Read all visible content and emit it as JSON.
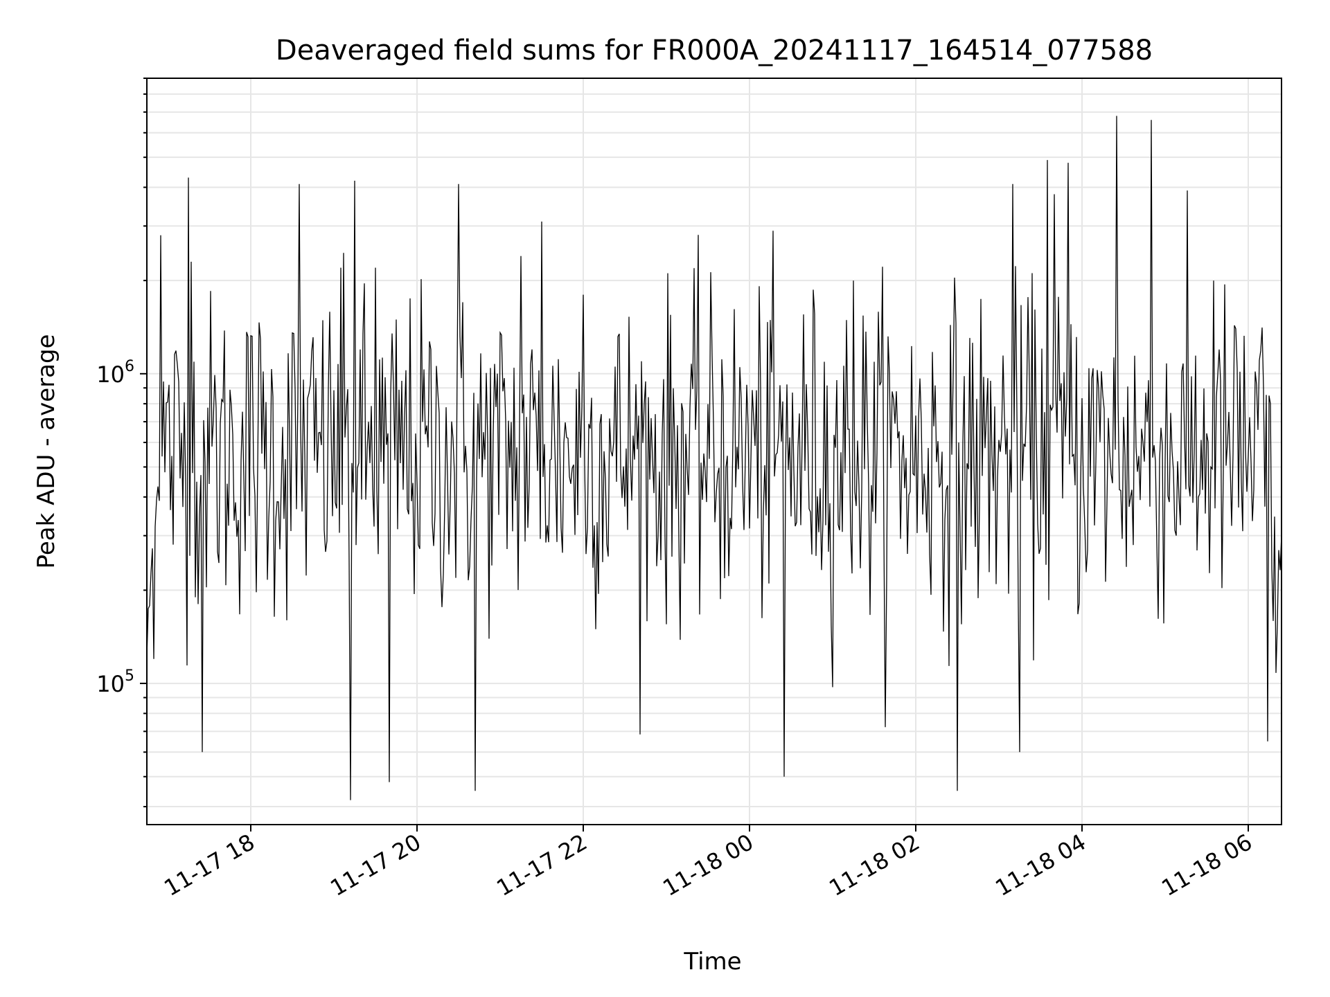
{
  "chart_data": {
    "type": "line",
    "title": "Deaveraged field sums for FR000A_20241117_164514_077588",
    "xlabel": "Time",
    "ylabel": "Peak ADU - average",
    "x_tick_labels": [
      "11-17 18",
      "11-17 20",
      "11-17 22",
      "11-18 00",
      "11-18 02",
      "11-18 04",
      "11-18 06"
    ],
    "y_tick_labels": [
      {
        "base": "10",
        "exp": "5"
      },
      {
        "base": "10",
        "exp": "6"
      }
    ],
    "yscale": "log",
    "ylim": [
      35000,
      9000000
    ],
    "xlim": [
      "2024-11-17 16:45",
      "2024-11-18 06:24"
    ],
    "grid": true,
    "line_color": "#000000",
    "grid_color": "#e6e6e6",
    "series": [
      {
        "x_start": "2024-11-17 16:45",
        "x_end": "2024-11-18 06:24",
        "sample_interval_seconds": 60,
        "typical_y": 550000,
        "spikes": [
          {
            "x": "2024-11-17 16:50",
            "y": 120000
          },
          {
            "x": "2024-11-17 16:55",
            "y": 2800000
          },
          {
            "x": "2024-11-17 17:15",
            "y": 4300000
          },
          {
            "x": "2024-11-17 17:17",
            "y": 2300000
          },
          {
            "x": "2024-11-17 17:25",
            "y": 60000
          },
          {
            "x": "2024-11-17 18:35",
            "y": 4100000
          },
          {
            "x": "2024-11-17 19:05",
            "y": 2200000
          },
          {
            "x": "2024-11-17 19:12",
            "y": 42000
          },
          {
            "x": "2024-11-17 19:15",
            "y": 4200000
          },
          {
            "x": "2024-11-17 19:30",
            "y": 2200000
          },
          {
            "x": "2024-11-17 19:40",
            "y": 48000
          },
          {
            "x": "2024-11-17 20:30",
            "y": 4100000
          },
          {
            "x": "2024-11-17 20:42",
            "y": 45000
          },
          {
            "x": "2024-11-17 21:15",
            "y": 2400000
          },
          {
            "x": "2024-11-17 21:30",
            "y": 3100000
          },
          {
            "x": "2024-11-17 22:00",
            "y": 1800000
          },
          {
            "x": "2024-11-18 00:25",
            "y": 50000
          },
          {
            "x": "2024-11-18 01:15",
            "y": 2000000
          },
          {
            "x": "2024-11-18 02:30",
            "y": 45000
          },
          {
            "x": "2024-11-18 03:10",
            "y": 4100000
          },
          {
            "x": "2024-11-18 03:15",
            "y": 60000
          },
          {
            "x": "2024-11-18 03:35",
            "y": 4900000
          },
          {
            "x": "2024-11-18 03:40",
            "y": 3800000
          },
          {
            "x": "2024-11-18 03:50",
            "y": 4800000
          },
          {
            "x": "2024-11-18 04:25",
            "y": 6800000
          },
          {
            "x": "2024-11-18 04:50",
            "y": 6600000
          },
          {
            "x": "2024-11-18 05:35",
            "y": 2000000
          },
          {
            "x": "2024-11-18 06:14",
            "y": 65000
          }
        ]
      }
    ]
  }
}
